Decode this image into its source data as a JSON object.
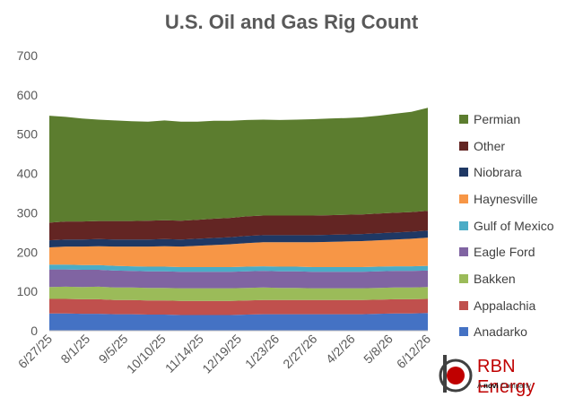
{
  "chart_data": {
    "type": "area",
    "stacked": true,
    "title": "U.S. Oil and Gas Rig Count",
    "xlabel": "",
    "ylabel": "",
    "ylim": [
      0,
      700
    ],
    "yticks": [
      "0",
      "100",
      "200",
      "300",
      "400",
      "500",
      "600",
      "700"
    ],
    "xticks": [
      "6/27/25",
      "8/1/25",
      "9/5/25",
      "10/10/25",
      "11/14/25",
      "12/19/25",
      "1/23/26",
      "2/27/26",
      "4/2/26",
      "5/8/26",
      "6/12/26"
    ],
    "legend_position": "right",
    "grid": false,
    "series": [
      {
        "name": "Anadarko",
        "color": "#4472c4",
        "values": [
          44,
          44,
          43,
          43,
          42,
          42,
          41,
          41,
          40,
          40,
          40,
          40,
          41,
          42,
          42,
          42,
          42,
          42,
          42,
          42,
          43,
          44,
          44,
          45
        ]
      },
      {
        "name": "Appalachia",
        "color": "#c0504d",
        "values": [
          37,
          37,
          37,
          37,
          36,
          36,
          36,
          36,
          36,
          36,
          36,
          36,
          36,
          36,
          36,
          36,
          36,
          36,
          36,
          36,
          36,
          36,
          36,
          36
        ]
      },
      {
        "name": "Bakken",
        "color": "#9bbb59",
        "values": [
          30,
          31,
          31,
          32,
          32,
          32,
          32,
          32,
          32,
          32,
          32,
          32,
          32,
          32,
          31,
          31,
          30,
          30,
          30,
          30,
          30,
          30,
          30,
          30
        ]
      },
      {
        "name": "Eagle Ford",
        "color": "#8064a2",
        "values": [
          45,
          44,
          44,
          43,
          43,
          42,
          42,
          42,
          42,
          42,
          42,
          42,
          42,
          42,
          42,
          42,
          42,
          42,
          42,
          42,
          42,
          42,
          42,
          42
        ]
      },
      {
        "name": "Gulf of Mexico",
        "color": "#4bacc6",
        "values": [
          12,
          12,
          12,
          12,
          12,
          12,
          12,
          12,
          12,
          12,
          12,
          12,
          12,
          12,
          12,
          12,
          12,
          12,
          12,
          12,
          12,
          12,
          12,
          12
        ]
      },
      {
        "name": "Haynesville",
        "color": "#f79646",
        "values": [
          44,
          46,
          47,
          48,
          49,
          50,
          51,
          52,
          52,
          54,
          56,
          58,
          60,
          61,
          62,
          62,
          63,
          64,
          65,
          66,
          67,
          68,
          70,
          72
        ]
      },
      {
        "name": "Niobrara",
        "color": "#1f3864",
        "values": [
          18,
          18,
          18,
          18,
          18,
          18,
          18,
          18,
          18,
          18,
          18,
          18,
          18,
          18,
          18,
          18,
          18,
          18,
          18,
          18,
          18,
          18,
          18,
          18
        ]
      },
      {
        "name": "Other",
        "color": "#632523",
        "values": [
          45,
          46,
          46,
          46,
          47,
          47,
          48,
          48,
          48,
          48,
          49,
          49,
          50,
          50,
          50,
          50,
          50,
          50,
          50,
          50,
          50,
          50,
          50,
          50
        ]
      },
      {
        "name": "Permian",
        "color": "#5c7d2f",
        "values": [
          272,
          266,
          262,
          258,
          256,
          254,
          252,
          254,
          252,
          250,
          249,
          247,
          245,
          244,
          243,
          244,
          245,
          246,
          246,
          247,
          249,
          252,
          255,
          262
        ]
      }
    ]
  },
  "logo": {
    "name": "RBN Energy",
    "sub_prefix": "A ",
    "sub_brand": "novi",
    "sub_suffix": " Company"
  }
}
